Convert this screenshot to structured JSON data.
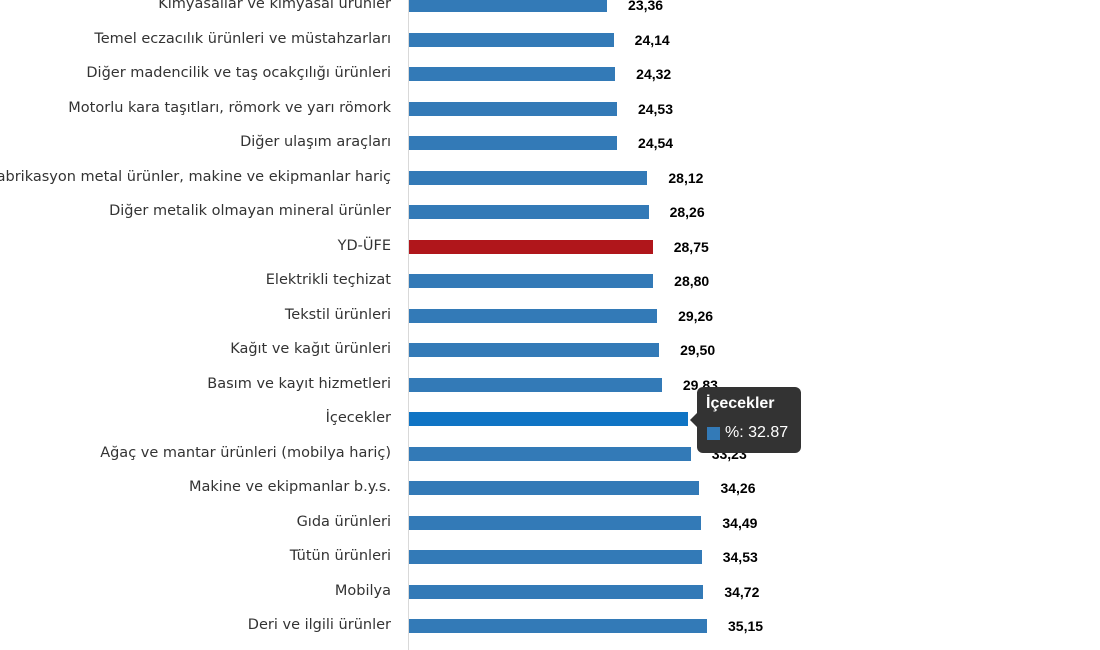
{
  "chart_data": {
    "type": "bar",
    "orientation": "horizontal",
    "categories": [
      "Kimyasallar ve kimyasal ürünler",
      "Temel eczacılık ürünleri ve müstahzarları",
      "Diğer madencilik ve taş ocakçılığı ürünleri",
      "Motorlu kara taşıtları, römork ve yarı römork",
      "Diğer ulaşım araçları",
      "Fabrikasyon metal ürünler, makine ve ekipmanlar hariç",
      "Diğer metalik olmayan mineral ürünler",
      "YD-ÜFE",
      "Elektrikli teçhizat",
      "Tekstil ürünleri",
      "Kağıt ve kağıt ürünleri",
      "Basım ve kayıt hizmetleri",
      "İçecekler",
      "Ağaç ve mantar ürünleri (mobilya hariç)",
      "Makine ve ekipmanlar b.y.s.",
      "Gıda ürünleri",
      "Tütün ürünleri",
      "Mobilya",
      "Deri ve ilgili ürünler"
    ],
    "values": [
      23.36,
      24.14,
      24.32,
      24.53,
      24.54,
      28.12,
      28.26,
      28.75,
      28.8,
      29.26,
      29.5,
      29.83,
      32.87,
      33.23,
      34.26,
      34.49,
      34.53,
      34.72,
      35.15
    ],
    "data_labels": [
      "23,36",
      "24,14",
      "24,32",
      "24,53",
      "24,54",
      "28,12",
      "28,26",
      "28,75",
      "28,80",
      "29,26",
      "29,50",
      "29,83",
      "32,87",
      "33,23",
      "34,26",
      "34,49",
      "34,53",
      "34,72",
      "35,15"
    ],
    "highlight_category": "YD-ÜFE",
    "hovered_category": "İçecekler",
    "colors": {
      "bar": "#337ab7",
      "highlight": "#b0161b",
      "hover": "#0f74c4"
    },
    "xlim": [
      0,
      35.15
    ],
    "grid": false
  },
  "tooltip": {
    "title": "İçecekler",
    "label": "%: 32.87"
  }
}
